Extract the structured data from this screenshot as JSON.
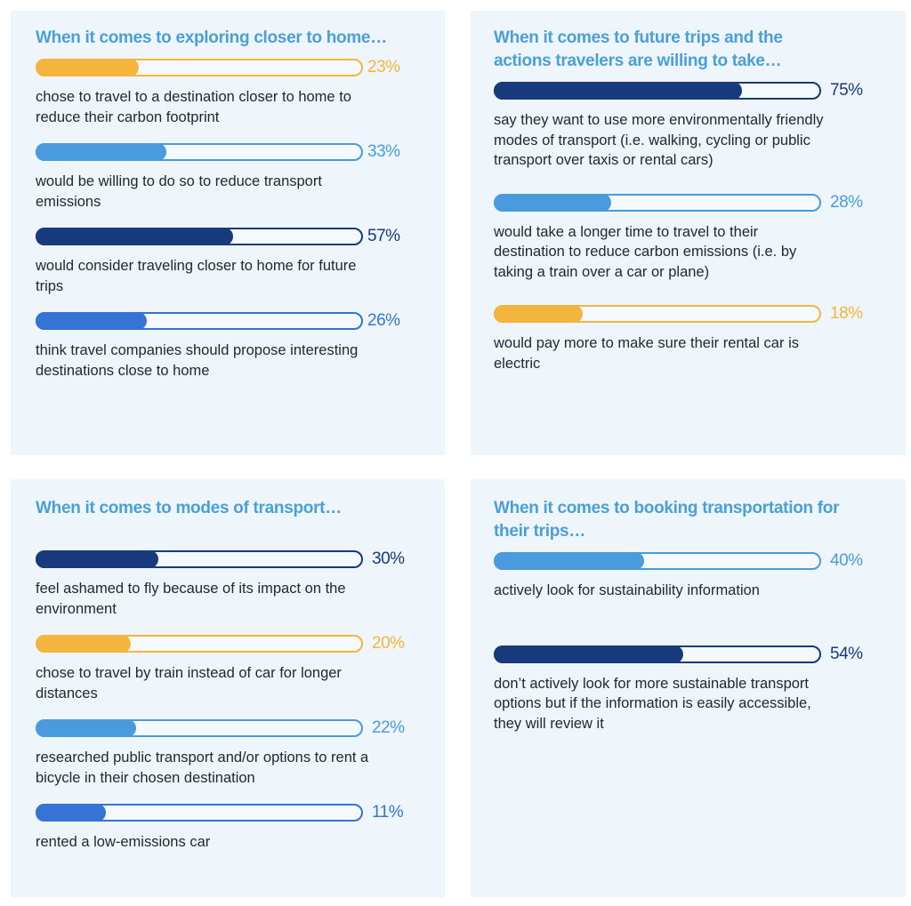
{
  "colors": {
    "title": "#4a9fd8",
    "text": "#222831",
    "panel_bg": "#eef6fb",
    "navy": "#163a7c",
    "sky": "#4a9ade",
    "royal": "#3574d4",
    "gold": "#f3b53d"
  },
  "chart_data": [
    {
      "type": "bar",
      "orientation": "horizontal",
      "title": "When it comes to exploring closer to home…",
      "unit": "%",
      "range": [
        0,
        100
      ],
      "categories": [
        "chose to travel to a destination closer to home to reduce their carbon footprint",
        "would be willing to do so to reduce transport emissions",
        "would consider traveling closer to home for future trips",
        "think travel companies should propose interesting destinations close to home"
      ],
      "values": [
        23,
        33,
        57,
        26
      ],
      "labels": [
        "23%",
        "33%",
        "57%",
        "26%"
      ],
      "colors": [
        "gold",
        "sky",
        "navy",
        "royal"
      ]
    },
    {
      "type": "bar",
      "orientation": "horizontal",
      "title": "When it comes to future trips and the actions travelers are willing to take…",
      "unit": "%",
      "range": [
        0,
        100
      ],
      "categories": [
        "say they want to use more environmentally friendly modes of transport (i.e. walking, cycling or public transport over taxis or rental cars)",
        "would take a longer time to travel to their destination to reduce carbon emissions (i.e. by taking a train over a car or plane)",
        "would pay more to make sure their rental car is electric"
      ],
      "values": [
        75,
        28,
        18
      ],
      "labels": [
        "75%",
        "28%",
        "18%"
      ],
      "colors": [
        "navy",
        "sky",
        "gold"
      ]
    },
    {
      "type": "bar",
      "orientation": "horizontal",
      "title": "When it comes to modes of transport…",
      "unit": "%",
      "range": [
        0,
        100
      ],
      "categories": [
        "feel ashamed to fly because of its impact on the environment",
        "chose to travel by train instead of car for longer distances",
        "researched public transport and/or options to rent a bicycle in their chosen destination",
        "rented a low-emissions car"
      ],
      "values": [
        30,
        20,
        22,
        11
      ],
      "labels": [
        "30%",
        "20%",
        "22%",
        "11%"
      ],
      "colors": [
        "navy",
        "gold",
        "sky",
        "royal"
      ]
    },
    {
      "type": "bar",
      "orientation": "horizontal",
      "title": "When it comes to booking transportation for their trips…",
      "unit": "%",
      "range": [
        0,
        100
      ],
      "categories": [
        "actively look for sustainability information",
        "don’t actively look for more sustainable transport options but if the information is easily accessible, they will review it"
      ],
      "values": [
        40,
        54
      ],
      "labels": [
        "40%",
        "54%"
      ],
      "colors": [
        "sky",
        "navy"
      ]
    }
  ]
}
